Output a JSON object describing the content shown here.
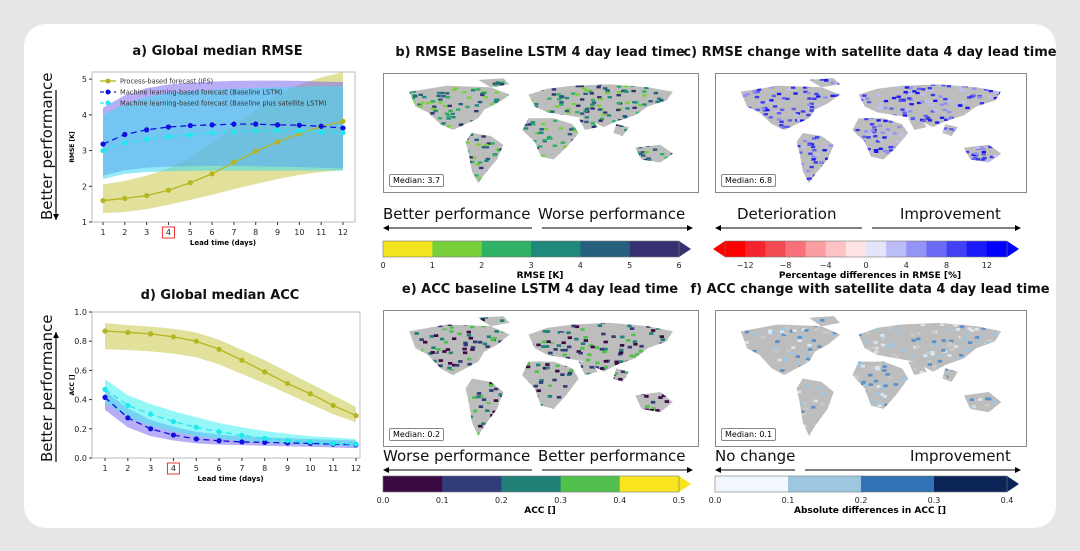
{
  "chart_data": [
    {
      "panel": "a",
      "type": "line",
      "title": "a) Global median RMSE",
      "xlabel": "Lead time (days)",
      "ylabel": "RMSE [K]",
      "side_label": "Better performance",
      "side_arrow": "down",
      "x": [
        1,
        2,
        3,
        4,
        5,
        6,
        7,
        8,
        9,
        10,
        11,
        12
      ],
      "highlight_x": 4,
      "ylim": [
        1,
        5.2
      ],
      "yticks": [
        1,
        2,
        3,
        4,
        5
      ],
      "legend": "top-left",
      "grid": false,
      "series": [
        {
          "name": "Process-based forecast (IFS)",
          "color": "#b5b520",
          "dash": false,
          "values": [
            1.6,
            1.66,
            1.74,
            1.89,
            2.1,
            2.35,
            2.67,
            2.98,
            3.24,
            3.47,
            3.67,
            3.82
          ],
          "band_low": [
            1.25,
            1.28,
            1.36,
            1.48,
            1.62,
            1.76,
            1.92,
            2.06,
            2.2,
            2.32,
            2.4,
            2.45
          ],
          "band_high": [
            2.05,
            2.15,
            2.3,
            2.5,
            2.8,
            3.2,
            3.7,
            4.15,
            4.55,
            4.85,
            5.05,
            5.2
          ],
          "band_color": "#c8c84a"
        },
        {
          "name": "Machine learning-based forecast (Baseline LSTM)",
          "color": "#1010e0",
          "dash": true,
          "values": [
            3.18,
            3.45,
            3.58,
            3.66,
            3.7,
            3.72,
            3.74,
            3.74,
            3.72,
            3.71,
            3.68,
            3.63
          ],
          "band_low": [
            2.3,
            2.45,
            2.52,
            2.55,
            2.56,
            2.57,
            2.57,
            2.56,
            2.55,
            2.54,
            2.52,
            2.5
          ],
          "band_high": [
            4.2,
            4.55,
            4.75,
            4.85,
            4.9,
            4.93,
            4.95,
            4.96,
            4.96,
            4.95,
            4.93,
            4.92
          ],
          "band_color": "#7b6cf0"
        },
        {
          "name": "Machine learning-based forecast (Baseline plus satellite LSTM)",
          "color": "#20e8f0",
          "dash": true,
          "values": [
            3.0,
            3.22,
            3.32,
            3.39,
            3.44,
            3.49,
            3.52,
            3.55,
            3.56,
            3.55,
            3.52,
            3.5
          ],
          "band_low": [
            2.2,
            2.35,
            2.4,
            2.42,
            2.43,
            2.44,
            2.44,
            2.44,
            2.44,
            2.44,
            2.44,
            2.44
          ],
          "band_high": [
            4.0,
            4.3,
            4.5,
            4.6,
            4.66,
            4.7,
            4.73,
            4.75,
            4.77,
            4.78,
            4.8,
            4.8
          ],
          "band_color": "#40d8f0"
        }
      ]
    },
    {
      "panel": "d",
      "type": "line",
      "title": "d) Global median ACC",
      "xlabel": "Lead time (days)",
      "ylabel": "ACC []",
      "side_label": "Better performance",
      "side_arrow": "up",
      "x": [
        1,
        2,
        3,
        4,
        5,
        6,
        7,
        8,
        9,
        10,
        11,
        12
      ],
      "highlight_x": 4,
      "ylim": [
        0,
        1.0
      ],
      "yticks": [
        0.0,
        0.2,
        0.4,
        0.6,
        0.8,
        1.0
      ],
      "grid": false,
      "series": [
        {
          "name": "Process-based forecast (IFS)",
          "color": "#b5b520",
          "dash": false,
          "values": [
            0.87,
            0.86,
            0.85,
            0.83,
            0.8,
            0.745,
            0.67,
            0.59,
            0.51,
            0.44,
            0.36,
            0.29
          ],
          "band_low": [
            0.745,
            0.74,
            0.73,
            0.715,
            0.69,
            0.64,
            0.575,
            0.51,
            0.44,
            0.37,
            0.3,
            0.245
          ],
          "band_high": [
            0.925,
            0.91,
            0.9,
            0.885,
            0.86,
            0.81,
            0.74,
            0.67,
            0.59,
            0.51,
            0.43,
            0.35
          ],
          "band_color": "#c8c84a"
        },
        {
          "name": "Machine learning-based forecast (Baseline LSTM)",
          "color": "#1010e0",
          "dash": true,
          "values": [
            0.415,
            0.275,
            0.2,
            0.157,
            0.13,
            0.118,
            0.11,
            0.107,
            0.103,
            0.1,
            0.095,
            0.09
          ],
          "band_low": [
            0.33,
            0.21,
            0.15,
            0.12,
            0.1,
            0.092,
            0.088,
            0.084,
            0.08,
            0.077,
            0.072,
            0.068
          ],
          "band_high": [
            0.46,
            0.34,
            0.26,
            0.215,
            0.18,
            0.16,
            0.148,
            0.14,
            0.135,
            0.13,
            0.125,
            0.12
          ],
          "band_color": "#7b6cf0"
        },
        {
          "name": "Machine learning-based forecast (Baseline plus satellite LSTM)",
          "color": "#20e8f0",
          "dash": true,
          "values": [
            0.47,
            0.36,
            0.3,
            0.25,
            0.21,
            0.18,
            0.155,
            0.135,
            0.12,
            0.11,
            0.1,
            0.095
          ],
          "band_low": [
            0.38,
            0.28,
            0.22,
            0.18,
            0.15,
            0.13,
            0.115,
            0.105,
            0.097,
            0.09,
            0.085,
            0.08
          ],
          "band_high": [
            0.54,
            0.43,
            0.37,
            0.32,
            0.28,
            0.24,
            0.21,
            0.185,
            0.165,
            0.15,
            0.14,
            0.13
          ],
          "band_color": "#40f0f0"
        }
      ]
    }
  ],
  "maps": [
    {
      "title": "b) RMSE Baseline LSTM 4 day lead time",
      "median": "Median: 3.7",
      "left_label": "Better performance",
      "right_label": "Worse performance",
      "cbar_label": "RMSE [K]",
      "ticks": [
        "0",
        "1",
        "2",
        "3",
        "4",
        "5",
        "6"
      ],
      "colors": [
        "#f2e51d",
        "#7ad03a",
        "#2fb266",
        "#1f8a7c",
        "#26607e",
        "#35306f"
      ],
      "extend": "right",
      "land_colors": [
        "#2fb266",
        "#1f8a7c",
        "#26607e",
        "#7ad03a",
        "#35306f"
      ]
    },
    {
      "title": "c) RMSE change with satellite data 4 day lead time",
      "median": "Median: 6.8",
      "left_label": "Deterioration",
      "right_label": "Improvement",
      "cbar_label": "Percentage differences in RMSE [%]",
      "ticks": [
        "−12",
        "−8",
        "−4",
        "0",
        "4",
        "8",
        "12"
      ],
      "colors": [
        "#ff0000",
        "#f5242c",
        "#f34a52",
        "#f7707a",
        "#fa9ea2",
        "#ffc2c4",
        "#ffe4e6",
        "#e4e4fa",
        "#bcbcf8",
        "#9494f6",
        "#6a6af4",
        "#4040f4",
        "#1a1af6",
        "#0000ff"
      ],
      "extend": "both",
      "land_colors": [
        "#3a3af0",
        "#6060f0",
        "#9090f0",
        "#1a1af0",
        "#c0c0f0"
      ]
    },
    {
      "title": "e) ACC baseline LSTM 4 day lead time",
      "median": "Median: 0.2",
      "left_label": "Worse performance",
      "right_label": "Better performance",
      "cbar_label": "ACC []",
      "ticks": [
        "0.0",
        "0.1",
        "0.2",
        "0.3",
        "0.4",
        "0.5"
      ],
      "colors": [
        "#3b0a45",
        "#2f3d78",
        "#218078",
        "#52c04c",
        "#f8e51d"
      ],
      "extend": "right",
      "land_colors": [
        "#3b0a45",
        "#2f3d78",
        "#218078",
        "#bdbdbd",
        "#52c04c"
      ]
    },
    {
      "title": "f) ACC change with satellite data 4 day lead time",
      "median": "Median: 0.1",
      "left_label": "No change",
      "right_label": "Improvement",
      "cbar_label": "Absolute differences in ACC []",
      "ticks": [
        "0.0",
        "0.1",
        "0.2",
        "0.3",
        "0.4"
      ],
      "colors": [
        "#f2f7fd",
        "#9fc6e0",
        "#2f73b6",
        "#0b2457"
      ],
      "extend": "right",
      "land_colors": [
        "#bdbdbd",
        "#d8e6f2",
        "#9fc6e0",
        "#c8c8c8",
        "#5a90c8"
      ]
    }
  ],
  "ocean_color": "#ffffff",
  "nodata_color": "#bdbdbd"
}
